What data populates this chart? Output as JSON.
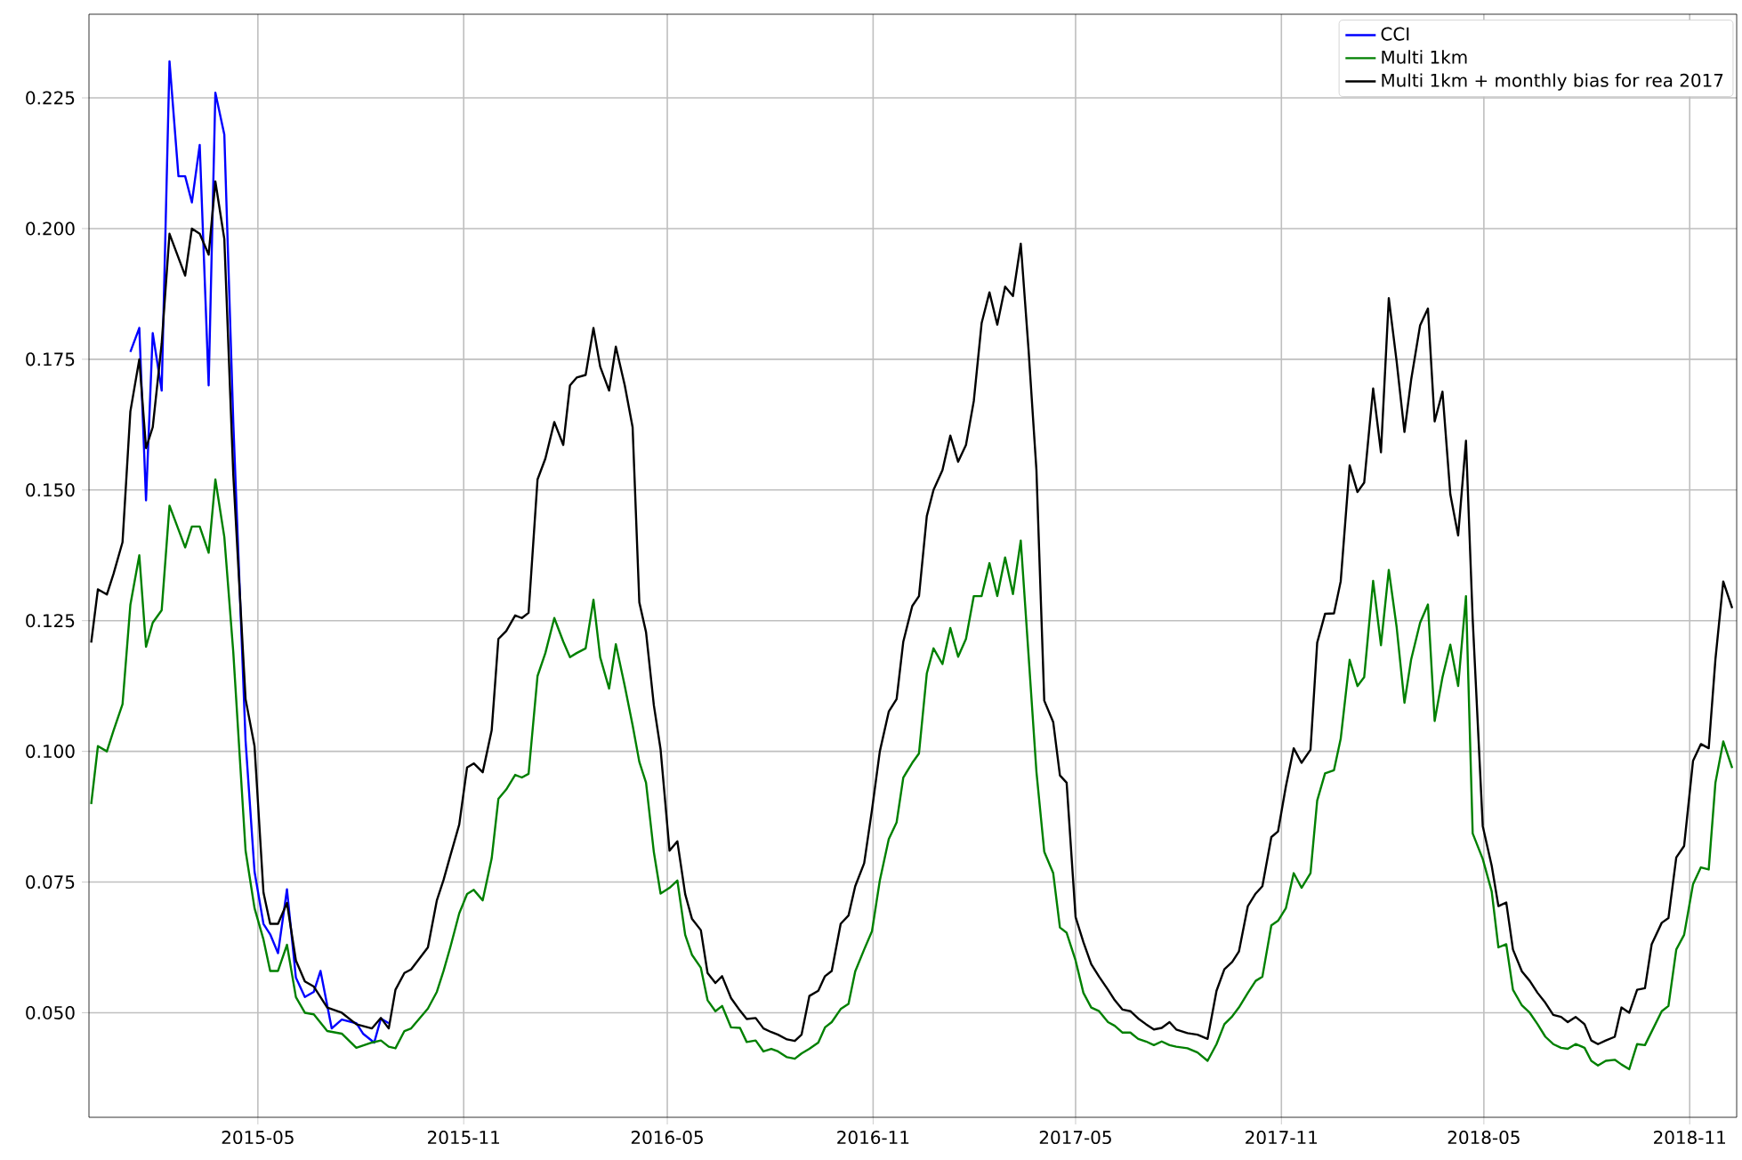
{
  "chart_data": {
    "type": "line",
    "grid": true,
    "legend": "top right",
    "xlim": [
      "2014-12-01",
      "2018-12-13"
    ],
    "ylim": [
      0.03,
      0.241
    ],
    "xticks": [
      "2015-05",
      "2015-11",
      "2016-05",
      "2016-11",
      "2017-05",
      "2017-11",
      "2018-05",
      "2018-11"
    ],
    "yticks": [
      {
        "value": 0.05,
        "label": "0.050"
      },
      {
        "value": 0.075,
        "label": "0.075"
      },
      {
        "value": 0.1,
        "label": "0.100"
      },
      {
        "value": 0.125,
        "label": "0.125"
      },
      {
        "value": 0.15,
        "label": "0.150"
      },
      {
        "value": 0.175,
        "label": "0.175"
      },
      {
        "value": 0.2,
        "label": "0.200"
      },
      {
        "value": 0.225,
        "label": "0.225"
      }
    ],
    "x": [
      "2014-12-03",
      "2014-12-09",
      "2014-12-17",
      "2014-12-23",
      "2014-12-31",
      "2015-01-07",
      "2015-01-15",
      "2015-01-21",
      "2015-01-27",
      "2015-02-04",
      "2015-02-11",
      "2015-02-25",
      "2015-03-03",
      "2015-03-10",
      "2015-03-18",
      "2015-03-24",
      "2015-04-01",
      "2015-04-09",
      "2015-04-20",
      "2015-04-28",
      "2015-05-06",
      "2015-05-12",
      "2015-05-19",
      "2015-05-27",
      "2015-06-04",
      "2015-06-12",
      "2015-06-20",
      "2015-07-02",
      "2015-07-15",
      "2015-07-28",
      "2015-08-11",
      "2015-08-19",
      "2015-08-26",
      "2015-09-01",
      "2015-09-09",
      "2015-09-15",
      "2015-09-30",
      "2015-10-08",
      "2015-10-14",
      "2015-10-20",
      "2015-10-28",
      "2015-11-04",
      "2015-11-10",
      "2015-11-18",
      "2015-11-26",
      "2015-12-02",
      "2015-12-09",
      "2015-12-17",
      "2015-12-23",
      "2015-12-29",
      "2016-01-06",
      "2016-01-13",
      "2016-01-21",
      "2016-01-29",
      "2016-02-04",
      "2016-02-10",
      "2016-02-18",
      "2016-02-25",
      "2016-03-02",
      "2016-03-10",
      "2016-03-16",
      "2016-03-24",
      "2016-03-31",
      "2016-04-06",
      "2016-04-12",
      "2016-04-19",
      "2016-04-25",
      "2016-05-03",
      "2016-05-10",
      "2016-05-17",
      "2016-05-23",
      "2016-05-31",
      "2016-06-06",
      "2016-06-13",
      "2016-06-19",
      "2016-06-27",
      "2016-07-05",
      "2016-07-11",
      "2016-07-19",
      "2016-07-26",
      "2016-08-02",
      "2016-08-08",
      "2016-08-16",
      "2016-08-23",
      "2016-08-29",
      "2016-09-05",
      "2016-09-13",
      "2016-09-19",
      "2016-09-25",
      "2016-10-03",
      "2016-10-10",
      "2016-10-16",
      "2016-10-24",
      "2016-10-31",
      "2016-11-07",
      "2016-11-15",
      "2016-11-22",
      "2016-11-28",
      "2016-12-06",
      "2016-12-12",
      "2016-12-19",
      "2016-12-25",
      "2017-01-02",
      "2017-01-09",
      "2017-01-16",
      "2017-01-23",
      "2017-01-30",
      "2017-02-06",
      "2017-02-13",
      "2017-02-20",
      "2017-02-27",
      "2017-03-06",
      "2017-03-13",
      "2017-03-20",
      "2017-03-27",
      "2017-04-03",
      "2017-04-11",
      "2017-04-17",
      "2017-04-23",
      "2017-05-01",
      "2017-05-08",
      "2017-05-15",
      "2017-05-22",
      "2017-05-30",
      "2017-06-05",
      "2017-06-12",
      "2017-06-19",
      "2017-06-26",
      "2017-07-03",
      "2017-07-10",
      "2017-07-17",
      "2017-07-24",
      "2017-07-30",
      "2017-08-09",
      "2017-08-18",
      "2017-08-27",
      "2017-09-04",
      "2017-09-11",
      "2017-09-18",
      "2017-09-24",
      "2017-10-02",
      "2017-10-09",
      "2017-10-15",
      "2017-10-23",
      "2017-10-29",
      "2017-11-05",
      "2017-11-12",
      "2017-11-19",
      "2017-11-27",
      "2017-12-03",
      "2017-12-10",
      "2017-12-18",
      "2017-12-24",
      "2018-01-01",
      "2018-01-08",
      "2018-01-14",
      "2018-01-22",
      "2018-01-29",
      "2018-02-05",
      "2018-02-12",
      "2018-02-19",
      "2018-02-25",
      "2018-03-05",
      "2018-03-12",
      "2018-03-18",
      "2018-03-25",
      "2018-04-01",
      "2018-04-08",
      "2018-04-15",
      "2018-04-21",
      "2018-04-30",
      "2018-05-08",
      "2018-05-14",
      "2018-05-21",
      "2018-05-27",
      "2018-06-04",
      "2018-06-11",
      "2018-06-18",
      "2018-06-25",
      "2018-07-02",
      "2018-07-09",
      "2018-07-15",
      "2018-07-22",
      "2018-07-30",
      "2018-08-05",
      "2018-08-11",
      "2018-08-18",
      "2018-08-26",
      "2018-09-01",
      "2018-09-08",
      "2018-09-15",
      "2018-09-22",
      "2018-09-28",
      "2018-10-07",
      "2018-10-13",
      "2018-10-20",
      "2018-10-27",
      "2018-11-04",
      "2018-11-11",
      "2018-11-18",
      "2018-11-24",
      "2018-12-01",
      "2018-12-09"
    ],
    "series": [
      {
        "name": "CCI",
        "color": "#0000ff",
        "x": [
          "2015-01-07",
          "2015-01-15",
          "2015-01-21",
          "2015-01-27",
          "2015-02-04",
          "2015-02-11",
          "2015-02-19",
          "2015-02-25",
          "2015-03-03",
          "2015-03-10",
          "2015-03-18",
          "2015-03-24",
          "2015-04-01",
          "2015-04-09",
          "2015-04-20",
          "2015-04-28",
          "2015-05-06",
          "2015-05-12",
          "2015-05-19",
          "2015-05-27",
          "2015-06-04",
          "2015-06-12",
          "2015-06-20",
          "2015-06-26",
          "2015-07-06",
          "2015-07-15",
          "2015-07-28",
          "2015-08-03",
          "2015-08-13",
          "2015-08-19",
          "2015-08-26"
        ],
        "values": [
          0.1764,
          0.181,
          0.148,
          0.18,
          0.169,
          0.232,
          0.21,
          0.21,
          0.205,
          0.216,
          0.17,
          0.226,
          0.218,
          0.163,
          0.102,
          0.077,
          0.067,
          0.065,
          0.0614,
          0.0736,
          0.0567,
          0.053,
          0.054,
          0.058,
          0.047,
          0.0487,
          0.048,
          0.046,
          0.0443,
          0.0489,
          0.048
        ]
      },
      {
        "name": "Multi 1km",
        "color": "#008000",
        "values": [
          0.0899,
          0.101,
          0.1,
          0.104,
          0.109,
          0.128,
          0.1375,
          0.12,
          0.1246,
          0.127,
          0.147,
          0.139,
          0.143,
          0.143,
          0.138,
          0.152,
          0.141,
          0.119,
          0.081,
          0.07,
          0.064,
          0.058,
          0.058,
          0.063,
          0.053,
          0.05,
          0.0497,
          0.0465,
          0.046,
          0.0433,
          0.0443,
          0.0447,
          0.0435,
          0.0432,
          0.0465,
          0.047,
          0.0508,
          0.054,
          0.058,
          0.0625,
          0.069,
          0.0727,
          0.0735,
          0.0715,
          0.0795,
          0.0909,
          0.0927,
          0.0955,
          0.095,
          0.0957,
          0.1144,
          0.1188,
          0.1255,
          0.121,
          0.118,
          0.1188,
          0.1197,
          0.129,
          0.118,
          0.112,
          0.1205,
          0.1125,
          0.105,
          0.098,
          0.094,
          0.0807,
          0.0728,
          0.0739,
          0.0753,
          0.0649,
          0.0611,
          0.0586,
          0.0524,
          0.0503,
          0.0513,
          0.0472,
          0.0471,
          0.0444,
          0.0447,
          0.0426,
          0.0431,
          0.0426,
          0.0415,
          0.0412,
          0.0422,
          0.0431,
          0.0443,
          0.0472,
          0.0482,
          0.0507,
          0.0517,
          0.0579,
          0.0621,
          0.0656,
          0.0753,
          0.0832,
          0.0864,
          0.095,
          0.0978,
          0.0996,
          0.1149,
          0.1197,
          0.1167,
          0.1236,
          0.1181,
          0.1215,
          0.1297,
          0.1297,
          0.136,
          0.1297,
          0.1371,
          0.1301,
          0.1403,
          0.1183,
          0.0961,
          0.0808,
          0.0767,
          0.0663,
          0.0653,
          0.06,
          0.0538,
          0.051,
          0.0503,
          0.0482,
          0.0475,
          0.0462,
          0.0462,
          0.045,
          0.0445,
          0.0438,
          0.0445,
          0.0438,
          0.0435,
          0.0432,
          0.0424,
          0.0408,
          0.044,
          0.0478,
          0.0493,
          0.051,
          0.0538,
          0.0561,
          0.0569,
          0.0667,
          0.0676,
          0.07,
          0.0767,
          0.0739,
          0.0767,
          0.0906,
          0.0958,
          0.0964,
          0.1024,
          0.1175,
          0.1125,
          0.1142,
          0.1326,
          0.1203,
          0.1347,
          0.1238,
          0.1093,
          0.1176,
          0.1246,
          0.1281,
          0.1058,
          0.1142,
          0.1204,
          0.1125,
          0.1297,
          0.0843,
          0.0794,
          0.0732,
          0.0625,
          0.0631,
          0.0544,
          0.0514,
          0.05,
          0.0478,
          0.0454,
          0.044,
          0.0433,
          0.0431,
          0.044,
          0.0433,
          0.0408,
          0.0399,
          0.0408,
          0.041,
          0.0401,
          0.0392,
          0.044,
          0.0438,
          0.0464,
          0.0503,
          0.0513,
          0.0621,
          0.0649,
          0.0746,
          0.0778,
          0.0774,
          0.094,
          0.1019,
          0.0968
        ]
      },
      {
        "name": "Multi 1km + monthly bias for rea 2017",
        "color": "#000000",
        "values": [
          0.1208,
          0.131,
          0.13,
          0.134,
          0.14,
          0.165,
          0.175,
          0.158,
          0.162,
          0.178,
          0.199,
          0.191,
          0.2,
          0.199,
          0.195,
          0.209,
          0.198,
          0.153,
          0.11,
          0.101,
          0.073,
          0.067,
          0.067,
          0.071,
          0.06,
          0.056,
          0.055,
          0.051,
          0.05,
          0.0478,
          0.047,
          0.049,
          0.047,
          0.0544,
          0.0576,
          0.0583,
          0.0625,
          0.0715,
          0.0754,
          0.08,
          0.086,
          0.0969,
          0.0977,
          0.096,
          0.104,
          0.1215,
          0.123,
          0.126,
          0.1255,
          0.1265,
          0.152,
          0.156,
          0.163,
          0.1586,
          0.17,
          0.1715,
          0.172,
          0.181,
          0.1736,
          0.169,
          0.1774,
          0.17,
          0.162,
          0.1285,
          0.1228,
          0.1088,
          0.1004,
          0.081,
          0.0828,
          0.0727,
          0.068,
          0.0658,
          0.0576,
          0.0557,
          0.057,
          0.0528,
          0.0504,
          0.0488,
          0.049,
          0.047,
          0.0463,
          0.0458,
          0.0449,
          0.0446,
          0.0458,
          0.0532,
          0.0542,
          0.057,
          0.058,
          0.067,
          0.0686,
          0.0742,
          0.0786,
          0.0888,
          0.1,
          0.1076,
          0.11,
          0.121,
          0.1278,
          0.1297,
          0.145,
          0.15,
          0.1538,
          0.1604,
          0.1554,
          0.1586,
          0.167,
          0.1819,
          0.1878,
          0.1816,
          0.1889,
          0.1871,
          0.1971,
          0.1767,
          0.1538,
          0.1097,
          0.1056,
          0.0954,
          0.094,
          0.0683,
          0.0635,
          0.0593,
          0.0569,
          0.0544,
          0.0524,
          0.0506,
          0.0503,
          0.0489,
          0.0478,
          0.0468,
          0.0471,
          0.0482,
          0.0468,
          0.0461,
          0.0458,
          0.045,
          0.0542,
          0.0583,
          0.0597,
          0.0617,
          0.0704,
          0.0728,
          0.0742,
          0.0836,
          0.0847,
          0.0933,
          0.1006,
          0.0978,
          0.1003,
          0.1208,
          0.1263,
          0.1264,
          0.1325,
          0.1547,
          0.1496,
          0.1514,
          0.1694,
          0.1572,
          0.1867,
          0.1746,
          0.1611,
          0.1711,
          0.1815,
          0.1847,
          0.1631,
          0.1688,
          0.1492,
          0.1413,
          0.1594,
          0.1253,
          0.0857,
          0.0781,
          0.0704,
          0.0711,
          0.0621,
          0.0579,
          0.0561,
          0.0538,
          0.0519,
          0.0496,
          0.0492,
          0.0482,
          0.0492,
          0.0478,
          0.0447,
          0.044,
          0.0447,
          0.0454,
          0.051,
          0.05,
          0.0544,
          0.0547,
          0.0631,
          0.0672,
          0.0681,
          0.0797,
          0.0819,
          0.0982,
          0.1014,
          0.1006,
          0.1176,
          0.1325,
          0.1274
        ]
      }
    ]
  }
}
